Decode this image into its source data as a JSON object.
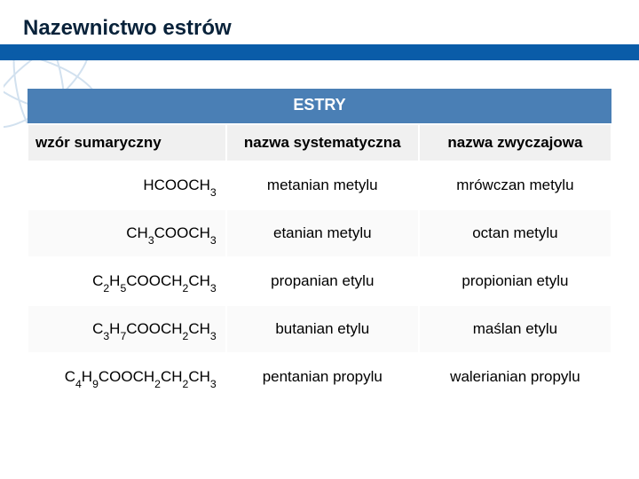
{
  "title": {
    "text": "Nazewnictwo estrów",
    "color": "#08223a",
    "fontsize": 24
  },
  "title_bar": {
    "strip_color": "#0a5ca8",
    "bg_color": "#ffffff"
  },
  "deco": {
    "stroke": "#0a5ca8",
    "opacity": 0.18
  },
  "table": {
    "banner": {
      "label": "ESTRY",
      "bg": "#4a7fb5",
      "fg": "#ffffff",
      "fontsize": 18
    },
    "header_bg": "#f0f0f0",
    "header_fontsize": 17,
    "cell_fontsize": 17,
    "col_widths_pct": [
      34,
      33,
      33
    ],
    "columns": [
      "wzór sumaryczny",
      "nazwa systematyczna",
      "nazwa zwyczajowa"
    ],
    "rows": [
      {
        "formula_html": "HCOOCH<sub>3</sub>",
        "systematic": "metanian metylu",
        "common": "mrówczan metylu"
      },
      {
        "formula_html": "CH<sub>3</sub>COOCH<sub>3</sub>",
        "systematic": "etanian metylu",
        "common": "octan metylu"
      },
      {
        "formula_html": "C<sub>2</sub>H<sub>5</sub>COOCH<sub>2</sub>CH<sub>3</sub>",
        "systematic": "propanian etylu",
        "common": "propionian etylu"
      },
      {
        "formula_html": "C<sub>3</sub>H<sub>7</sub>COOCH<sub>2</sub>CH<sub>3</sub>",
        "systematic": "butanian etylu",
        "common": "maślan etylu"
      },
      {
        "formula_html": "C<sub>4</sub>H<sub>9</sub>COOCH<sub>2</sub>CH<sub>2</sub>CH<sub>3</sub>",
        "systematic": "pentanian propylu",
        "common": "walerianian propylu"
      }
    ]
  }
}
